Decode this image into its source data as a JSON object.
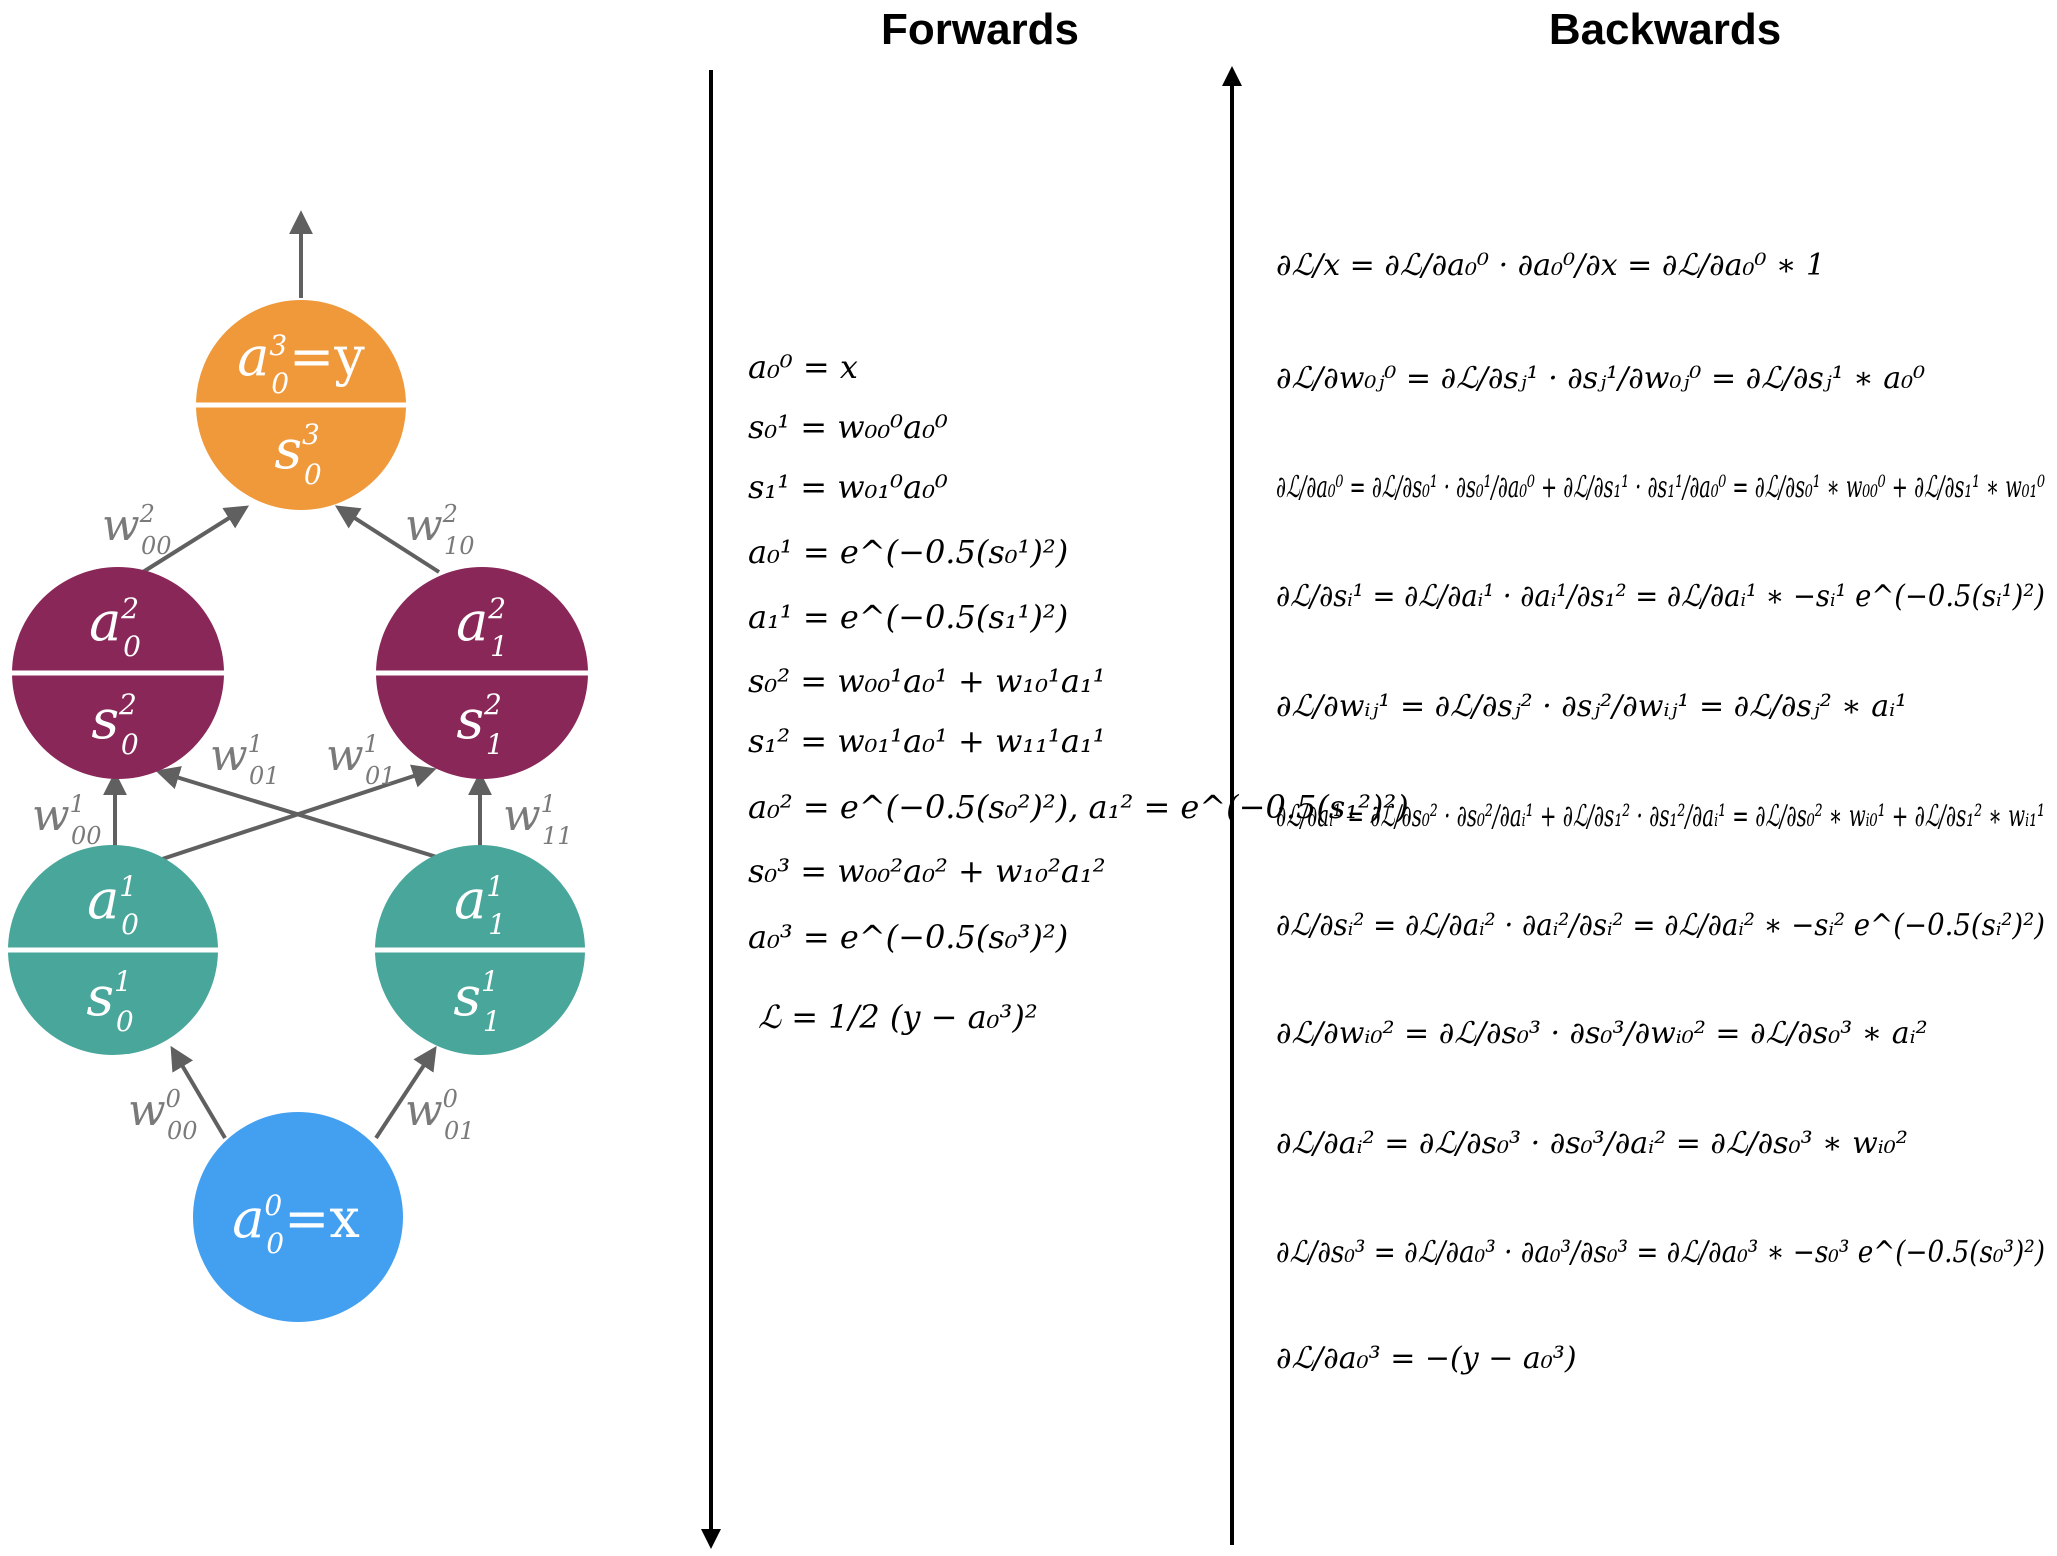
{
  "headers": {
    "forwards": "Forwards",
    "backwards": "Backwards"
  },
  "colors": {
    "output": "#F0993A",
    "hidden2": "#8A2759",
    "hidden1": "#48A69A",
    "input": "#43A0F1",
    "edge": "#606060",
    "edge_label": "#7a7a7a",
    "axis": "#000000"
  },
  "network": {
    "nodes": {
      "out": {
        "activation": "a",
        "activation_sup": "3",
        "activation_sub": "0",
        "activation_suffix": "=y",
        "sum": "s",
        "sum_sup": "3",
        "sum_sub": "0"
      },
      "h2_0": {
        "activation": "a",
        "activation_sup": "2",
        "activation_sub": "0",
        "sum": "s",
        "sum_sup": "2",
        "sum_sub": "0"
      },
      "h2_1": {
        "activation": "a",
        "activation_sup": "2",
        "activation_sub": "1",
        "sum": "s",
        "sum_sup": "2",
        "sum_sub": "1"
      },
      "h1_0": {
        "activation": "a",
        "activation_sup": "1",
        "activation_sub": "0",
        "sum": "s",
        "sum_sup": "1",
        "sum_sub": "0"
      },
      "h1_1": {
        "activation": "a",
        "activation_sup": "1",
        "activation_sub": "1",
        "sum": "s",
        "sum_sup": "1",
        "sum_sub": "1"
      },
      "in": {
        "activation": "a",
        "activation_sup": "0",
        "activation_sub": "0",
        "activation_suffix": "=x"
      }
    },
    "weights": {
      "w2_00": {
        "base": "w",
        "sup": "2",
        "sub": "00"
      },
      "w2_10": {
        "base": "w",
        "sup": "2",
        "sub": "10"
      },
      "w1_00": {
        "base": "w",
        "sup": "1",
        "sub": "00"
      },
      "w1_01_a": {
        "base": "w",
        "sup": "1",
        "sub": "01"
      },
      "w1_01_b": {
        "base": "w",
        "sup": "1",
        "sub": "01"
      },
      "w1_11": {
        "base": "w",
        "sup": "1",
        "sub": "11"
      },
      "w0_00": {
        "base": "w",
        "sup": "0",
        "sub": "00"
      },
      "w0_01": {
        "base": "w",
        "sup": "0",
        "sub": "01"
      }
    }
  },
  "forward_equations": [
    "a₀⁰ = x",
    "s₀¹ = w₀₀⁰a₀⁰",
    "s₁¹ = w₀₁⁰a₀⁰",
    "a₀¹ = e^(−0.5(s₀¹)²)",
    "a₁¹ = e^(−0.5(s₁¹)²)",
    "s₀² = w₀₀¹a₀¹ + w₁₀¹a₁¹",
    "s₁² = w₀₁¹a₀¹ + w₁₁¹a₁¹",
    "a₀² = e^(−0.5(s₀²)²),  a₁² = e^(−0.5(s₁²)²)",
    "s₀³ = w₀₀²a₀² + w₁₀²a₁²",
    "a₀³ = e^(−0.5(s₀³)²)",
    "ℒ = 1/2 (y − a₀³)²"
  ],
  "backward_equations": [
    "∂ℒ/x = ∂ℒ/∂a₀⁰ · ∂a₀⁰/∂x = ∂ℒ/∂a₀⁰ ∗ 1",
    "∂ℒ/∂w₀ⱼ⁰ = ∂ℒ/∂sⱼ¹ · ∂sⱼ¹/∂w₀ⱼ⁰ = ∂ℒ/∂sⱼ¹ ∗ a₀⁰",
    "∂ℒ/∂a₀⁰ = ∂ℒ/∂s₀¹ · ∂s₀¹/∂a₀⁰ + ∂ℒ/∂s₁¹ · ∂s₁¹/∂a₀⁰ = ∂ℒ/∂s₀¹ ∗ w₀₀⁰ + ∂ℒ/∂s₁¹ ∗ w₀₁⁰",
    "∂ℒ/∂sᵢ¹ = ∂ℒ/∂aᵢ¹ · ∂aᵢ¹/∂s₁² = ∂ℒ/∂aᵢ¹ ∗ −sᵢ¹ e^(−0.5(sᵢ¹)²)",
    "∂ℒ/∂wᵢⱼ¹ = ∂ℒ/∂sⱼ² · ∂sⱼ²/∂wᵢⱼ¹ = ∂ℒ/∂sⱼ² ∗ aᵢ¹",
    "∂ℒ/∂aᵢ¹ = ∂ℒ/∂s₀² · ∂s₀²/∂aᵢ¹ + ∂ℒ/∂s₁² · ∂s₁²/∂aᵢ¹ = ∂ℒ/∂s₀² ∗ wᵢ₀¹ + ∂ℒ/∂s₁² ∗ wᵢ₁¹",
    "∂ℒ/∂sᵢ² = ∂ℒ/∂aᵢ² · ∂aᵢ²/∂sᵢ² = ∂ℒ/∂aᵢ² ∗ −sᵢ² e^(−0.5(sᵢ²)²)",
    "∂ℒ/∂wᵢ₀² = ∂ℒ/∂s₀³ · ∂s₀³/∂wᵢ₀² = ∂ℒ/∂s₀³ ∗ aᵢ²",
    "∂ℒ/∂aᵢ² = ∂ℒ/∂s₀³ · ∂s₀³/∂aᵢ² = ∂ℒ/∂s₀³ ∗ wᵢ₀²",
    "∂ℒ/∂s₀³ = ∂ℒ/∂a₀³ · ∂a₀³/∂s₀³ = ∂ℒ/∂a₀³ ∗ −s₀³ e^(−0.5(s₀³)²)",
    "∂ℒ/∂a₀³ = −(y − a₀³)"
  ]
}
